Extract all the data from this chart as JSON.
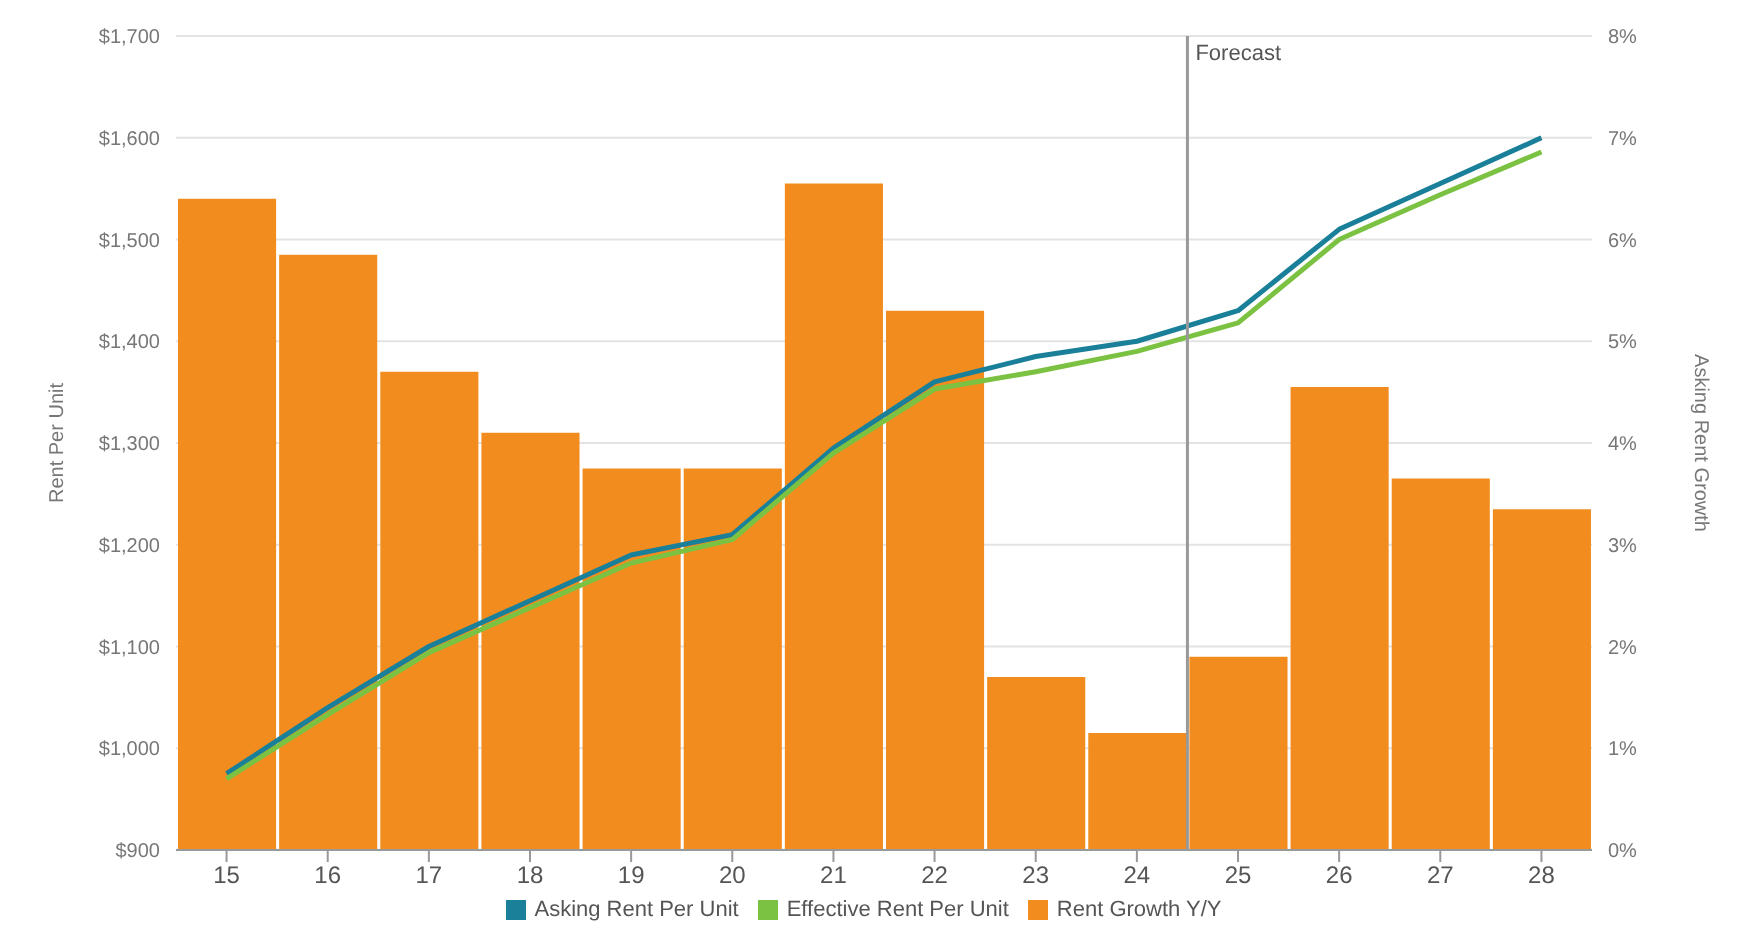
{
  "chart_data": {
    "type": "bar",
    "ylabel": "Rent Per Unit",
    "y2label": "Asking Rent Growth",
    "x": [
      15,
      16,
      17,
      18,
      19,
      20,
      21,
      22,
      23,
      24,
      25,
      26,
      27,
      28
    ],
    "xlim": [
      14.5,
      28.5
    ],
    "xticks": [
      15,
      16,
      17,
      18,
      19,
      20,
      21,
      22,
      23,
      24,
      25,
      26,
      27,
      28
    ],
    "ylim": [
      900,
      1700
    ],
    "yticks": [
      {
        "value": 900,
        "label": "$900"
      },
      {
        "value": 1000,
        "label": "$1,000"
      },
      {
        "value": 1100,
        "label": "$1,100"
      },
      {
        "value": 1200,
        "label": "$1,200"
      },
      {
        "value": 1300,
        "label": "$1,300"
      },
      {
        "value": 1400,
        "label": "$1,400"
      },
      {
        "value": 1500,
        "label": "$1,500"
      },
      {
        "value": 1600,
        "label": "$1,600"
      },
      {
        "value": 1700,
        "label": "$1,700"
      }
    ],
    "y2lim": [
      0,
      8
    ],
    "y2ticks": [
      {
        "value": 0,
        "label": "0%"
      },
      {
        "value": 1,
        "label": "1%"
      },
      {
        "value": 2,
        "label": "2%"
      },
      {
        "value": 3,
        "label": "3%"
      },
      {
        "value": 4,
        "label": "4%"
      },
      {
        "value": 5,
        "label": "5%"
      },
      {
        "value": 6,
        "label": "6%"
      },
      {
        "value": 7,
        "label": "7%"
      },
      {
        "value": 8,
        "label": "8%"
      }
    ],
    "series": [
      {
        "name": "Rent Growth Y/Y",
        "axis": "y2",
        "color": "#f28c1e",
        "values": [
          6.4,
          5.85,
          4.7,
          4.1,
          3.75,
          3.75,
          6.55,
          5.3,
          1.7,
          1.15,
          1.9,
          4.55,
          3.65,
          3.35
        ]
      },
      {
        "name": "Asking Rent Per Unit",
        "type": "line",
        "color": "#1a7f99",
        "values": [
          975,
          1040,
          1100,
          1145,
          1190,
          1210,
          1295,
          1360,
          1385,
          1400,
          1430,
          1510,
          1555,
          1600
        ]
      },
      {
        "name": "Effective Rent Per Unit",
        "type": "line",
        "color": "#7cc242",
        "values": [
          970,
          1033,
          1094,
          1138,
          1182,
          1205,
          1290,
          1353,
          1370,
          1390,
          1418,
          1500,
          1544,
          1586
        ]
      }
    ],
    "ref_lines": [
      {
        "axis": "x",
        "value": 24.5,
        "label": "Forecast",
        "color": "#999999",
        "line_style": "solid"
      }
    ],
    "grid": "y",
    "legend": "bottom",
    "marker": "none",
    "line_style": "solid"
  }
}
